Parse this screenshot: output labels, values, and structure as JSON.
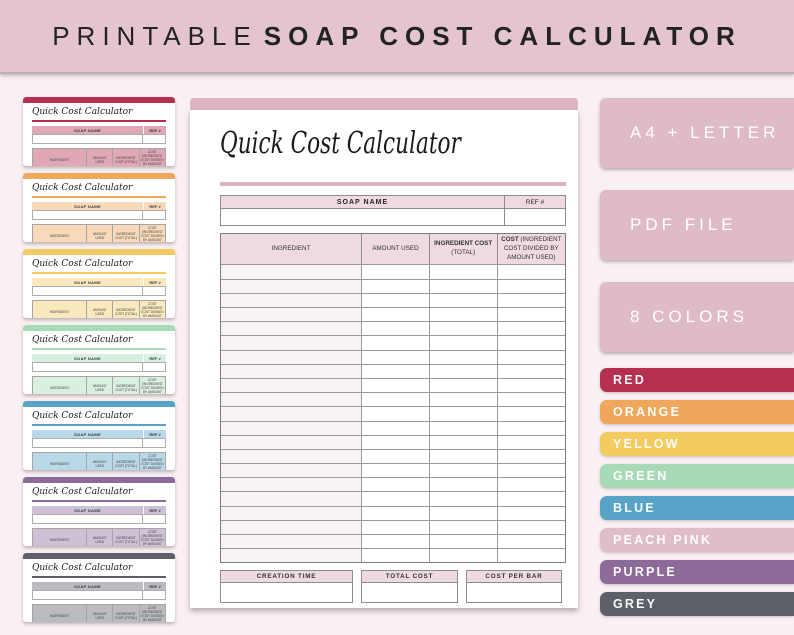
{
  "banner": {
    "prefix": "PRINTABLE",
    "title": "SOAP COST CALCULATOR"
  },
  "preview": {
    "title": "Quick Cost Calculator",
    "soap_name_label": "SOAP NAME",
    "ref_label": "REF #",
    "columns": [
      {
        "label": "INGREDIENT",
        "bold": false,
        "sub": ""
      },
      {
        "label": "AMOUNT USED",
        "bold": false,
        "sub": ""
      },
      {
        "label": "INGREDIENT COST",
        "bold": true,
        "sub": "(TOTAL)"
      },
      {
        "label": "COST",
        "bold": true,
        "sub": "(INGREDIENT COST DIVIDED BY AMOUNT USED)"
      }
    ],
    "row_count": 21,
    "footer_boxes": [
      "CREATION TIME",
      "TOTAL COST",
      "COST PER BAR"
    ]
  },
  "badges": [
    "A4 + LETTER",
    "PDF FILE",
    "8 COLORS"
  ],
  "colors": [
    {
      "label": "RED",
      "hex": "#b5304e"
    },
    {
      "label": "ORANGE",
      "hex": "#efa75b"
    },
    {
      "label": "YELLOW",
      "hex": "#f3cb5f"
    },
    {
      "label": "GREEN",
      "hex": "#a9dab8"
    },
    {
      "label": "BLUE",
      "hex": "#58a3c8"
    },
    {
      "label": "PEACH PINK",
      "hex": "#dfbec9"
    },
    {
      "label": "PURPLE",
      "hex": "#8c6b9b"
    },
    {
      "label": "GREY",
      "hex": "#5d5f69"
    }
  ],
  "thumbnails": [
    "RED",
    "ORANGE",
    "YELLOW",
    "GREEN",
    "BLUE",
    "PURPLE",
    "GREY"
  ],
  "theme": {
    "banner_bg": "#e5c5cd",
    "page_bg": "#f8f0f1",
    "badge_bg": "#debbc5",
    "preview_accent": "#dcb5c1",
    "border": "#8f8f8f",
    "text_dark": "#262626"
  }
}
